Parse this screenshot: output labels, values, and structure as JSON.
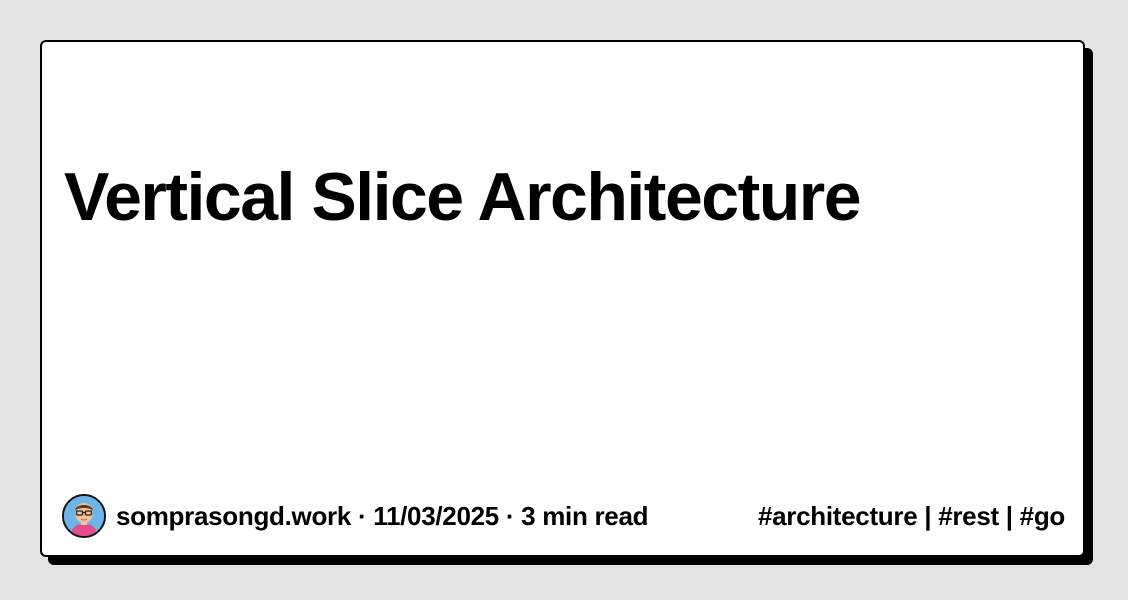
{
  "card": {
    "title": "Vertical Slice Architecture",
    "author": {
      "name": "somprasongd.work",
      "avatar_icon": "avatar-illustration-icon"
    },
    "separator": " · ",
    "date": "11/03/2025",
    "read_time": "3 min read",
    "tags_text": "#architecture | #rest | #go"
  },
  "colors": {
    "background": "#e3e3e3",
    "card": "#ffffff",
    "border": "#000000",
    "text": "#000000",
    "avatar_bg": "#6bb5e8",
    "avatar_shirt": "#e64b8a"
  }
}
